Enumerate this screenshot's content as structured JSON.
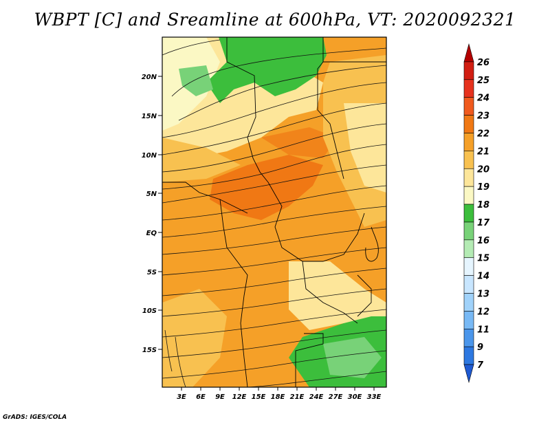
{
  "title": "WBPT [C] and Sreamline at 600hPa, VT: 2020092321",
  "credit": "GrADS: IGES/COLA",
  "map": {
    "lat_labels": [
      "20N",
      "15N",
      "10N",
      "5N",
      "EQ",
      "5S",
      "10S",
      "15S"
    ],
    "lon_labels": [
      "3E",
      "6E",
      "9E",
      "12E",
      "15E",
      "18E",
      "21E",
      "24E",
      "27E",
      "30E",
      "33E"
    ],
    "fields": {
      "wet_bulb_potential_temperature": "WBPT [C]",
      "streamline_level": "600hPa",
      "valid_time": "2020092321"
    }
  },
  "colorbar": {
    "labels": [
      "26",
      "25",
      "24",
      "23",
      "22",
      "21",
      "20",
      "19",
      "18",
      "17",
      "16",
      "15",
      "14",
      "13",
      "12",
      "11",
      "9",
      "7"
    ],
    "colors": [
      "#b40000",
      "#d21e12",
      "#e6321e",
      "#f05a1e",
      "#f07814",
      "#f5a028",
      "#f8c150",
      "#fde69a",
      "#fbf8c4",
      "#3cbe3c",
      "#78d278",
      "#b4ebb4",
      "#e6f5ff",
      "#c8e6ff",
      "#a0d2fa",
      "#78b9f5",
      "#4b96eb",
      "#2d78e1",
      "#1e5ad2"
    ]
  },
  "palette": {
    "warm_orange": "#f5a028",
    "deep_orange": "#f07814",
    "yellow_orange": "#f8c150",
    "pale_yellow": "#fde69a",
    "green": "#3cbe3c",
    "light_green": "#78d278"
  }
}
